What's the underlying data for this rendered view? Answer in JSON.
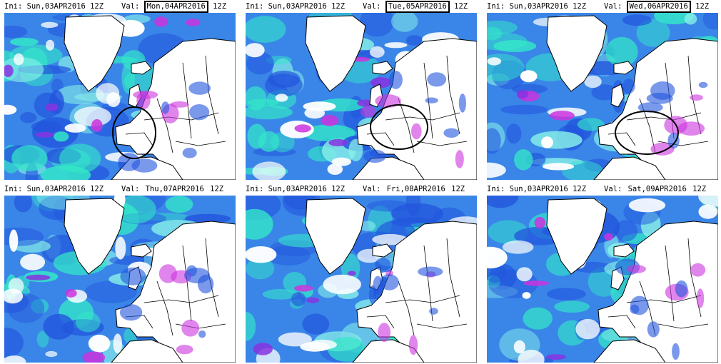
{
  "labels": {
    "ini": "Ini:",
    "val": "Val:"
  },
  "panels": [
    {
      "ini": "Sun,03APR2016 12Z",
      "val_date": "Mon,04APR2016",
      "val_hour": "12Z",
      "boxed": true,
      "circle": true
    },
    {
      "ini": "Sun,03APR2016 12Z",
      "val_date": "Tue,05APR2016",
      "val_hour": "12Z",
      "boxed": true,
      "circle": true
    },
    {
      "ini": "Sun,03APR2016 12Z",
      "val_date": "Wed,06APR2016",
      "val_hour": "12Z",
      "boxed": true,
      "circle": true
    },
    {
      "ini": "Sun,03APR2016 12Z",
      "val_date": "Thu,07APR2016",
      "val_hour": "12Z",
      "boxed": false,
      "circle": false
    },
    {
      "ini": "Sun,03APR2016 12Z",
      "val_date": "Fri,08APR2016",
      "val_hour": "12Z",
      "boxed": false,
      "circle": false
    },
    {
      "ini": "Sun,03APR2016 12Z",
      "val_date": "Sat,09APR2016",
      "val_hour": "12Z",
      "boxed": false,
      "circle": false
    }
  ],
  "colors": {
    "ocean": "#3a86e8",
    "deep_blue": "#2255dd",
    "cyan": "#33e8c8",
    "light_cyan": "#88f0e8",
    "purple": "#8833e0",
    "magenta": "#cc33dd",
    "land": "#ffffff",
    "coast": "#000000"
  }
}
